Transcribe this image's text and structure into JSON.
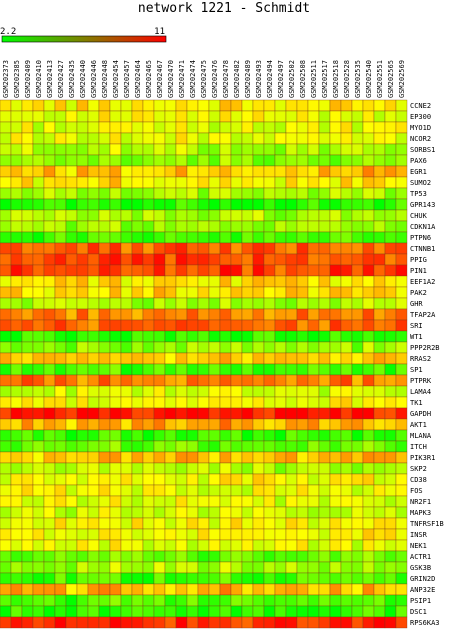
{
  "chart_data": {
    "type": "heatmap",
    "title": "network 1221 - Schmidt",
    "color_scale": {
      "min": 2.2,
      "max": 11,
      "min_label": "2.2",
      "max_label": "11",
      "low_color": "#00ff00",
      "high_color": "#ff0000"
    },
    "columns": [
      "GSM202373",
      "GSM202385",
      "GSM202409",
      "GSM202410",
      "GSM202413",
      "GSM202427",
      "GSM202435",
      "GSM202440",
      "GSM202446",
      "GSM202448",
      "GSM202454",
      "GSM202457",
      "GSM202464",
      "GSM202465",
      "GSM202467",
      "GSM202470",
      "GSM202471",
      "GSM202474",
      "GSM202475",
      "GSM202476",
      "GSM202478",
      "GSM202482",
      "GSM202489",
      "GSM202493",
      "GSM202494",
      "GSM202497",
      "GSM202502",
      "GSM202508",
      "GSM202511",
      "GSM202517",
      "GSM202518",
      "GSM202528",
      "GSM202535",
      "GSM202540",
      "GSM202551",
      "GSM202565",
      "GSM202569"
    ],
    "rows": [
      "CCNE2",
      "EP300",
      "MYO1D",
      "NCOR2",
      "SORBS1",
      "PAX6",
      "EGR1",
      "SUMO2",
      "TP53",
      "GPR143",
      "CHUK",
      "CDKN1A",
      "PTPN6",
      "CTNNB1",
      "PPIG",
      "PIN1",
      "EEF1A2",
      "PAK2",
      "GHR",
      "TFAP2A",
      "SRI",
      "WT1",
      "PPP2R2B",
      "RRAS2",
      "SP1",
      "PTPRK",
      "LAMA4",
      "TK1",
      "GAPDH",
      "AKT1",
      "MLANA",
      "ITCH",
      "PIK3R1",
      "SKP2",
      "CD38",
      "FOS",
      "NR2F1",
      "MAPK3",
      "TNFRSF1B",
      "INSR",
      "NEK1",
      "ACTR1",
      "GSK3B",
      "GRIN2D",
      "ANP32E",
      "PSIP1",
      "DSC1",
      "RPS6KA3"
    ],
    "row_levels": [
      6.8,
      6.2,
      6.0,
      6.1,
      5.2,
      4.4,
      7.6,
      6.7,
      5.0,
      2.8,
      5.0,
      4.8,
      3.3,
      9.3,
      9.6,
      9.8,
      6.9,
      7.0,
      4.9,
      8.6,
      9.2,
      2.9,
      4.6,
      7.4,
      3.3,
      8.7,
      5.8,
      6.3,
      10.6,
      8.0,
      3.0,
      3.8,
      7.6,
      5.3,
      6.4,
      6.2,
      6.0,
      5.7,
      6.4,
      6.6,
      6.0,
      3.9,
      5.0,
      3.2,
      7.7,
      3.5,
      2.9,
      10.3
    ],
    "column_offsets": [
      -0.2,
      0.1,
      0.3,
      -0.1,
      0.0,
      0.2,
      -0.3,
      0.1,
      0.0,
      0.2,
      0.4,
      -0.2,
      0.1,
      0.0,
      0.3,
      -0.1,
      0.2,
      0.1,
      -0.2,
      0.0,
      0.5,
      0.1,
      -0.1,
      0.2,
      0.0,
      -0.3,
      0.1,
      0.2,
      0.0,
      -0.1,
      0.1,
      0.3,
      -0.2,
      0.4,
      0.0,
      -0.1,
      0.2
    ]
  }
}
